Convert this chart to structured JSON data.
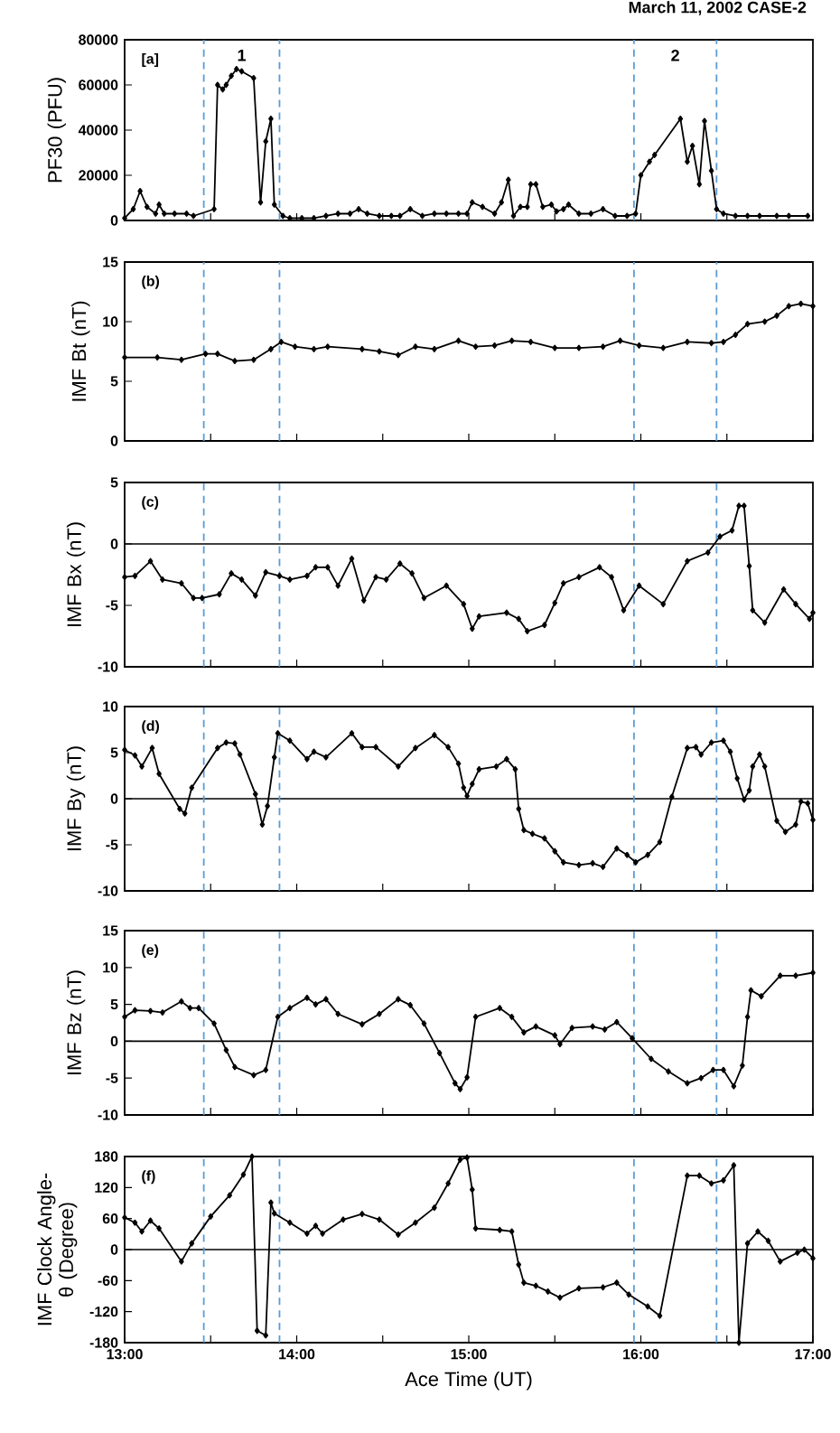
{
  "chart_data": [
    {
      "type": "line",
      "title": "March 11, 2002 CASE-2",
      "ylabel": "PF30 (PFU)",
      "color": "#000000",
      "marker": "diamond",
      "line_style": "solid",
      "tick_labels": "y",
      "annotations": [
        "[a]",
        "1",
        "2"
      ],
      "x": [
        13.0,
        13.05,
        13.09,
        13.13,
        13.18,
        13.2,
        13.23,
        13.29,
        13.36,
        13.4,
        13.52,
        13.54,
        13.57,
        13.59,
        13.62,
        13.65,
        13.68,
        13.75,
        13.79,
        13.82,
        13.85,
        13.87,
        13.92,
        13.96,
        14.03,
        14.1,
        14.17,
        14.24,
        14.31,
        14.36,
        14.41,
        14.48,
        14.55,
        14.6,
        14.66,
        14.73,
        14.8,
        14.87,
        14.94,
        14.99,
        15.02,
        15.08,
        15.15,
        15.19,
        15.23,
        15.26,
        15.3,
        15.34,
        15.36,
        15.39,
        15.43,
        15.48,
        15.51,
        15.55,
        15.58,
        15.64,
        15.71,
        15.78,
        15.85,
        15.92,
        15.97,
        16.0,
        16.05,
        16.08,
        16.23,
        16.27,
        16.3,
        16.34,
        16.37,
        16.41,
        16.44,
        16.48,
        16.55,
        16.62,
        16.69,
        16.79,
        16.86,
        16.97
      ],
      "values": [
        1000,
        5000,
        13000,
        6000,
        3000,
        7000,
        3000,
        3000,
        3000,
        2000,
        5000,
        60000,
        58000,
        60000,
        64000,
        67000,
        66000,
        63000,
        8000,
        35000,
        45000,
        7000,
        2000,
        1000,
        1000,
        1000,
        2000,
        3000,
        3000,
        5000,
        3000,
        2000,
        2000,
        2000,
        5000,
        2000,
        3000,
        3000,
        3000,
        3000,
        8000,
        6000,
        3000,
        8000,
        18000,
        2000,
        6000,
        6000,
        16000,
        16000,
        6000,
        7000,
        4000,
        5000,
        7000,
        3000,
        3000,
        5000,
        2000,
        2000,
        3000,
        20000,
        26000,
        29000,
        45000,
        26000,
        33000,
        16000,
        44000,
        22000,
        5000,
        3000,
        2000,
        2000,
        2000,
        2000,
        2000,
        2000
      ],
      "xlim": [
        13,
        17
      ],
      "ylim": [
        0,
        80000
      ],
      "yticks": [
        0,
        20000,
        40000,
        60000,
        80000
      ],
      "xticks": [
        {
          "value": 13,
          "label": null
        },
        {
          "value": 13.5,
          "label": null
        },
        {
          "value": 14,
          "label": null
        },
        {
          "value": 14.5,
          "label": null
        },
        {
          "value": 15,
          "label": null
        },
        {
          "value": 15.5,
          "label": null
        },
        {
          "value": 16,
          "label": null
        },
        {
          "value": 16.5,
          "label": null
        },
        {
          "value": 17,
          "label": null
        }
      ],
      "ref_lines": [
        {
          "axis": "x",
          "value": 13.46,
          "color": "#5b9bd5",
          "line_style": "dashed"
        },
        {
          "axis": "x",
          "value": 13.9,
          "color": "#5b9bd5",
          "line_style": "dashed"
        },
        {
          "axis": "x",
          "value": 15.96,
          "color": "#5b9bd5",
          "line_style": "dashed"
        },
        {
          "axis": "x",
          "value": 16.44,
          "color": "#5b9bd5",
          "line_style": "dashed"
        }
      ]
    },
    {
      "type": "line",
      "ylabel": "IMF Bt (nT)",
      "color": "#000000",
      "marker": "diamond",
      "line_style": "solid",
      "tick_labels": "y",
      "annotations": [
        "(b)"
      ],
      "x": [
        13.0,
        13.19,
        13.33,
        13.47,
        13.54,
        13.64,
        13.75,
        13.85,
        13.91,
        13.99,
        14.1,
        14.18,
        14.38,
        14.48,
        14.59,
        14.69,
        14.8,
        14.94,
        15.04,
        15.15,
        15.25,
        15.36,
        15.5,
        15.64,
        15.78,
        15.88,
        15.99,
        16.13,
        16.27,
        16.41,
        16.48,
        16.55,
        16.62,
        16.72,
        16.79,
        16.86,
        16.93,
        17.0
      ],
      "values": [
        7.0,
        7.0,
        6.8,
        7.3,
        7.3,
        6.7,
        6.8,
        7.7,
        8.3,
        7.9,
        7.7,
        7.9,
        7.7,
        7.5,
        7.2,
        7.9,
        7.7,
        8.4,
        7.9,
        8.0,
        8.4,
        8.3,
        7.8,
        7.8,
        7.9,
        8.4,
        8.0,
        7.8,
        8.3,
        8.2,
        8.3,
        8.9,
        9.8,
        10.0,
        10.5,
        11.3,
        11.5,
        11.3
      ],
      "xlim": [
        13,
        17
      ],
      "ylim": [
        0,
        15
      ],
      "yticks": [
        0,
        5,
        10,
        15
      ],
      "xticks": [
        {
          "value": 13,
          "label": null
        },
        {
          "value": 13.5,
          "label": null
        },
        {
          "value": 14,
          "label": null
        },
        {
          "value": 14.5,
          "label": null
        },
        {
          "value": 15,
          "label": null
        },
        {
          "value": 15.5,
          "label": null
        },
        {
          "value": 16,
          "label": null
        },
        {
          "value": 16.5,
          "label": null
        },
        {
          "value": 17,
          "label": null
        }
      ],
      "ref_lines": [
        {
          "axis": "x",
          "value": 13.46,
          "color": "#5b9bd5",
          "line_style": "dashed"
        },
        {
          "axis": "x",
          "value": 13.9,
          "color": "#5b9bd5",
          "line_style": "dashed"
        },
        {
          "axis": "x",
          "value": 15.96,
          "color": "#5b9bd5",
          "line_style": "dashed"
        },
        {
          "axis": "x",
          "value": 16.44,
          "color": "#5b9bd5",
          "line_style": "dashed"
        }
      ]
    },
    {
      "type": "line",
      "ylabel": "IMF Bx (nT)",
      "color": "#000000",
      "marker": "diamond",
      "line_style": "solid",
      "tick_labels": "y",
      "annotations": [
        "(c)"
      ],
      "x": [
        13.0,
        13.06,
        13.15,
        13.22,
        13.33,
        13.4,
        13.45,
        13.55,
        13.62,
        13.68,
        13.76,
        13.82,
        13.9,
        13.96,
        14.06,
        14.11,
        14.18,
        14.24,
        14.32,
        14.39,
        14.46,
        14.52,
        14.6,
        14.67,
        14.74,
        14.87,
        14.97,
        15.02,
        15.06,
        15.22,
        15.29,
        15.34,
        15.44,
        15.5,
        15.55,
        15.64,
        15.76,
        15.83,
        15.9,
        15.99,
        16.13,
        16.27,
        16.39,
        16.46,
        16.53,
        16.57,
        16.6,
        16.63,
        16.65,
        16.72,
        16.83,
        16.9,
        16.98,
        17.0
      ],
      "values": [
        -2.7,
        -2.6,
        -1.4,
        -2.9,
        -3.2,
        -4.4,
        -4.4,
        -4.1,
        -2.4,
        -2.9,
        -4.2,
        -2.3,
        -2.6,
        -2.9,
        -2.6,
        -1.9,
        -1.9,
        -3.4,
        -1.2,
        -4.6,
        -2.7,
        -2.9,
        -1.6,
        -2.4,
        -4.4,
        -3.4,
        -4.9,
        -6.9,
        -5.9,
        -5.6,
        -6.1,
        -7.1,
        -6.6,
        -4.8,
        -3.2,
        -2.7,
        -1.9,
        -2.7,
        -5.4,
        -3.4,
        -4.9,
        -1.4,
        -0.7,
        0.6,
        1.1,
        3.1,
        3.1,
        -1.8,
        -5.4,
        -6.4,
        -3.7,
        -4.9,
        -6.1,
        -5.6
      ],
      "xlim": [
        13,
        17
      ],
      "ylim": [
        -10,
        5
      ],
      "yticks": [
        -10,
        -5,
        0,
        5
      ],
      "xticks": [
        {
          "value": 13,
          "label": null
        },
        {
          "value": 13.5,
          "label": null
        },
        {
          "value": 14,
          "label": null
        },
        {
          "value": 14.5,
          "label": null
        },
        {
          "value": 15,
          "label": null
        },
        {
          "value": 15.5,
          "label": null
        },
        {
          "value": 16,
          "label": null
        },
        {
          "value": 16.5,
          "label": null
        },
        {
          "value": 17,
          "label": null
        }
      ],
      "ref_lines": [
        {
          "axis": "y",
          "value": 0,
          "color": "#000000"
        },
        {
          "axis": "x",
          "value": 13.46,
          "color": "#5b9bd5",
          "line_style": "dashed"
        },
        {
          "axis": "x",
          "value": 13.9,
          "color": "#5b9bd5",
          "line_style": "dashed"
        },
        {
          "axis": "x",
          "value": 15.96,
          "color": "#5b9bd5",
          "line_style": "dashed"
        },
        {
          "axis": "x",
          "value": 16.44,
          "color": "#5b9bd5",
          "line_style": "dashed"
        }
      ]
    },
    {
      "type": "line",
      "ylabel": "IMF By (nT)",
      "color": "#000000",
      "marker": "diamond",
      "line_style": "solid",
      "tick_labels": "y",
      "annotations": [
        "(d)"
      ],
      "x": [
        13.0,
        13.06,
        13.1,
        13.16,
        13.2,
        13.32,
        13.35,
        13.39,
        13.54,
        13.59,
        13.64,
        13.67,
        13.76,
        13.8,
        13.83,
        13.87,
        13.89,
        13.96,
        14.06,
        14.1,
        14.17,
        14.32,
        14.38,
        14.46,
        14.59,
        14.69,
        14.8,
        14.88,
        14.94,
        14.97,
        14.99,
        15.02,
        15.06,
        15.16,
        15.22,
        15.27,
        15.29,
        15.32,
        15.37,
        15.44,
        15.5,
        15.55,
        15.64,
        15.72,
        15.78,
        15.86,
        15.92,
        15.97,
        16.04,
        16.11,
        16.18,
        16.27,
        16.32,
        16.35,
        16.41,
        16.48,
        16.52,
        16.56,
        16.6,
        16.63,
        16.65,
        16.69,
        16.72,
        16.79,
        16.84,
        16.9,
        16.93,
        16.97,
        17.0
      ],
      "values": [
        5.3,
        4.7,
        3.5,
        5.5,
        2.7,
        -1.1,
        -1.6,
        1.2,
        5.5,
        6.1,
        6.0,
        4.8,
        0.5,
        -2.8,
        -0.8,
        4.5,
        7.1,
        6.3,
        4.3,
        5.1,
        4.5,
        7.1,
        5.6,
        5.6,
        3.5,
        5.5,
        6.9,
        5.6,
        3.8,
        1.2,
        0.3,
        1.6,
        3.2,
        3.5,
        4.3,
        3.2,
        -1.1,
        -3.4,
        -3.8,
        -4.3,
        -5.7,
        -6.9,
        -7.2,
        -7.0,
        -7.4,
        -5.4,
        -6.1,
        -6.9,
        -6.1,
        -4.7,
        0.2,
        5.5,
        5.6,
        4.8,
        6.1,
        6.3,
        5.1,
        2.2,
        -0.1,
        0.9,
        3.5,
        4.8,
        3.5,
        -2.4,
        -3.6,
        -2.8,
        -0.3,
        -0.5,
        -2.3
      ],
      "xlim": [
        13,
        17
      ],
      "ylim": [
        -10,
        10
      ],
      "yticks": [
        -10,
        -5,
        0,
        5,
        10
      ],
      "xticks": [
        {
          "value": 13,
          "label": null
        },
        {
          "value": 13.5,
          "label": null
        },
        {
          "value": 14,
          "label": null
        },
        {
          "value": 14.5,
          "label": null
        },
        {
          "value": 15,
          "label": null
        },
        {
          "value": 15.5,
          "label": null
        },
        {
          "value": 16,
          "label": null
        },
        {
          "value": 16.5,
          "label": null
        },
        {
          "value": 17,
          "label": null
        }
      ],
      "ref_lines": [
        {
          "axis": "y",
          "value": 0,
          "color": "#000000"
        },
        {
          "axis": "x",
          "value": 13.46,
          "color": "#5b9bd5",
          "line_style": "dashed"
        },
        {
          "axis": "x",
          "value": 13.9,
          "color": "#5b9bd5",
          "line_style": "dashed"
        },
        {
          "axis": "x",
          "value": 15.96,
          "color": "#5b9bd5",
          "line_style": "dashed"
        },
        {
          "axis": "x",
          "value": 16.44,
          "color": "#5b9bd5",
          "line_style": "dashed"
        }
      ]
    },
    {
      "type": "line",
      "ylabel": "IMF Bz (nT)",
      "color": "#000000",
      "marker": "diamond",
      "line_style": "solid",
      "tick_labels": "y",
      "annotations": [
        "(e)"
      ],
      "x": [
        13.0,
        13.06,
        13.15,
        13.22,
        13.33,
        13.38,
        13.43,
        13.52,
        13.59,
        13.64,
        13.75,
        13.82,
        13.89,
        13.96,
        14.06,
        14.11,
        14.17,
        14.24,
        14.38,
        14.48,
        14.59,
        14.66,
        14.74,
        14.83,
        14.92,
        14.95,
        14.99,
        15.04,
        15.18,
        15.25,
        15.32,
        15.39,
        15.5,
        15.53,
        15.6,
        15.72,
        15.79,
        15.86,
        15.95,
        16.06,
        16.16,
        16.27,
        16.35,
        16.42,
        16.48,
        16.54,
        16.59,
        16.62,
        16.64,
        16.7,
        16.81,
        16.9,
        17.0
      ],
      "values": [
        3.3,
        4.2,
        4.1,
        3.9,
        5.4,
        4.5,
        4.5,
        2.4,
        -1.2,
        -3.5,
        -4.6,
        -3.9,
        3.3,
        4.5,
        5.9,
        5.0,
        5.7,
        3.7,
        2.3,
        3.7,
        5.7,
        4.9,
        2.4,
        -1.6,
        -5.7,
        -6.5,
        -4.9,
        3.3,
        4.5,
        3.3,
        1.2,
        2.0,
        0.8,
        -0.4,
        1.8,
        2.0,
        1.6,
        2.6,
        0.4,
        -2.4,
        -4.1,
        -5.7,
        -5.0,
        -3.9,
        -3.9,
        -6.1,
        -3.3,
        3.3,
        6.9,
        6.1,
        8.9,
        8.9,
        9.3
      ],
      "xlim": [
        13,
        17
      ],
      "ylim": [
        -10,
        15
      ],
      "yticks": [
        -10,
        -5,
        0,
        5,
        10,
        15
      ],
      "xticks": [
        {
          "value": 13,
          "label": null
        },
        {
          "value": 13.5,
          "label": null
        },
        {
          "value": 14,
          "label": null
        },
        {
          "value": 14.5,
          "label": null
        },
        {
          "value": 15,
          "label": null
        },
        {
          "value": 15.5,
          "label": null
        },
        {
          "value": 16,
          "label": null
        },
        {
          "value": 16.5,
          "label": null
        },
        {
          "value": 17,
          "label": null
        }
      ],
      "ref_lines": [
        {
          "axis": "y",
          "value": 0,
          "color": "#000000"
        },
        {
          "axis": "x",
          "value": 13.46,
          "color": "#5b9bd5",
          "line_style": "dashed"
        },
        {
          "axis": "x",
          "value": 13.9,
          "color": "#5b9bd5",
          "line_style": "dashed"
        },
        {
          "axis": "x",
          "value": 15.96,
          "color": "#5b9bd5",
          "line_style": "dashed"
        },
        {
          "axis": "x",
          "value": 16.44,
          "color": "#5b9bd5",
          "line_style": "dashed"
        }
      ]
    },
    {
      "type": "line",
      "ylabel": "IMF Clock Angle-θ (Degree)",
      "xlabel": "Ace Time (UT)",
      "color": "#000000",
      "marker": "diamond",
      "line_style": "solid",
      "annotations": [
        "(f)"
      ],
      "x": [
        13.0,
        13.06,
        13.1,
        13.15,
        13.2,
        13.33,
        13.39,
        13.5,
        13.61,
        13.69,
        13.74,
        13.77,
        13.82,
        13.85,
        13.87,
        13.96,
        14.06,
        14.11,
        14.15,
        14.27,
        14.38,
        14.48,
        14.59,
        14.69,
        14.8,
        14.88,
        14.95,
        14.99,
        15.02,
        15.04,
        15.18,
        15.25,
        15.29,
        15.32,
        15.39,
        15.46,
        15.53,
        15.64,
        15.78,
        15.86,
        15.93,
        16.04,
        16.11,
        16.27,
        16.34,
        16.41,
        16.48,
        16.54,
        16.57,
        16.62,
        16.68,
        16.74,
        16.81,
        16.91,
        16.95,
        17.0
      ],
      "values": [
        62,
        52,
        35,
        56,
        41,
        -23,
        12,
        64,
        105,
        145,
        180,
        -157,
        -166,
        91,
        70,
        52,
        31,
        46,
        31,
        58,
        69,
        58,
        29,
        52,
        81,
        128,
        174,
        178,
        116,
        41,
        38,
        35,
        -29,
        -64,
        -70,
        -81,
        -93,
        -75,
        -73,
        -64,
        -87,
        -110,
        -128,
        143,
        143,
        128,
        134,
        163,
        -180,
        12,
        35,
        17,
        -23,
        -6,
        0,
        -17
      ],
      "xlim": [
        13,
        17
      ],
      "ylim": [
        -180,
        180
      ],
      "yticks": [
        -180,
        -120,
        -60,
        0,
        60,
        120,
        180
      ],
      "xticks": [
        {
          "value": 13,
          "label": "13:00"
        },
        {
          "value": 13.5,
          "label": null
        },
        {
          "value": 14,
          "label": "14:00"
        },
        {
          "value": 14.5,
          "label": null
        },
        {
          "value": 15,
          "label": "15:00"
        },
        {
          "value": 15.5,
          "label": null
        },
        {
          "value": 16,
          "label": "16:00"
        },
        {
          "value": 16.5,
          "label": null
        },
        {
          "value": 17,
          "label": "17:00"
        }
      ],
      "ref_lines": [
        {
          "axis": "y",
          "value": 0,
          "color": "#000000"
        },
        {
          "axis": "x",
          "value": 13.46,
          "color": "#5b9bd5",
          "line_style": "dashed"
        },
        {
          "axis": "x",
          "value": 13.9,
          "color": "#5b9bd5",
          "line_style": "dashed"
        },
        {
          "axis": "x",
          "value": 15.96,
          "color": "#5b9bd5",
          "line_style": "dashed"
        },
        {
          "axis": "x",
          "value": 16.44,
          "color": "#5b9bd5",
          "line_style": "dashed"
        }
      ]
    }
  ]
}
